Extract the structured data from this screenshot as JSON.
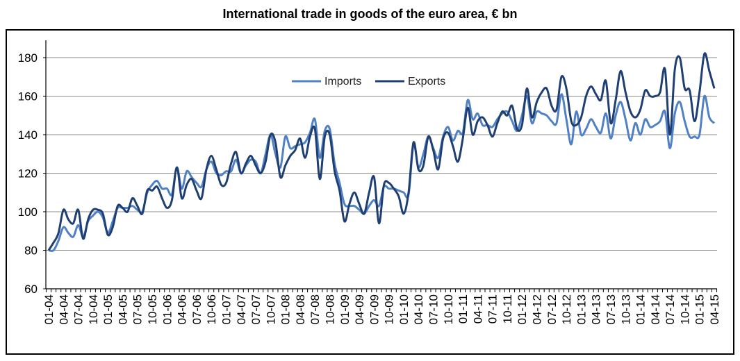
{
  "chart_data": {
    "type": "line",
    "title": "International trade in goods of the euro area, € bn",
    "xlabel": "",
    "ylabel": "",
    "ylim": [
      60,
      190
    ],
    "yticks": [
      60,
      80,
      100,
      120,
      140,
      160,
      180
    ],
    "grid": true,
    "legend_position": "top-center",
    "x_start": "01-04",
    "x_end": "04-15",
    "x_frequency": "monthly",
    "xtick_labels": [
      "01-04",
      "04-04",
      "07-04",
      "10-04",
      "01-05",
      "04-05",
      "07-05",
      "10-05",
      "01-06",
      "04-06",
      "07-06",
      "10-06",
      "01-07",
      "04-07",
      "07-07",
      "10-07",
      "01-08",
      "04-08",
      "07-08",
      "10-08",
      "01-09",
      "04-09",
      "07-09",
      "10-09",
      "01-10",
      "04-10",
      "07-10",
      "10-10",
      "01-11",
      "04-11",
      "07-11",
      "10-11",
      "01-12",
      "04-12",
      "07-12",
      "10-12",
      "01-13",
      "04-13",
      "07-13",
      "10-13",
      "01-14",
      "04-14",
      "07-14",
      "10-14",
      "01-15",
      "04-15"
    ],
    "series": [
      {
        "name": "Imports",
        "color": "#4f81c4",
        "values": [
          80,
          80,
          85,
          92,
          89,
          87,
          93,
          87,
          95,
          98,
          100,
          97,
          89,
          95,
          102,
          102,
          102,
          103,
          101,
          100,
          110,
          114,
          116,
          112,
          112,
          109,
          123,
          112,
          121,
          118,
          115,
          113,
          122,
          126,
          120,
          119,
          121,
          121,
          127,
          120,
          124,
          127,
          126,
          120,
          130,
          140,
          130,
          123,
          139,
          133,
          134,
          135,
          136,
          141,
          148,
          128,
          142,
          143,
          125,
          115,
          104,
          103,
          103,
          101,
          99,
          103,
          106,
          103,
          113,
          112,
          112,
          111,
          110,
          109,
          135,
          123,
          130,
          139,
          133,
          128,
          139,
          144,
          137,
          142,
          141,
          158,
          148,
          151,
          145,
          145,
          144,
          148,
          151,
          152,
          147,
          142,
          150,
          160,
          146,
          152,
          151,
          150,
          147,
          146,
          161,
          148,
          135,
          152,
          140,
          143,
          148,
          144,
          141,
          151,
          138,
          150,
          157,
          148,
          137,
          146,
          140,
          148,
          144,
          145,
          147,
          152,
          133,
          151,
          157,
          147,
          139,
          139,
          140,
          160,
          149,
          146
        ]
      },
      {
        "name": "Exports",
        "color": "#1f3e72",
        "values": [
          80,
          84,
          89,
          101,
          96,
          94,
          101,
          86,
          96,
          101,
          101,
          99,
          88,
          92,
          103,
          102,
          100,
          107,
          103,
          99,
          111,
          111,
          113,
          107,
          102,
          106,
          123,
          107,
          114,
          117,
          111,
          107,
          122,
          129,
          122,
          114,
          115,
          125,
          131,
          120,
          125,
          129,
          124,
          120,
          126,
          140,
          136,
          118,
          124,
          129,
          132,
          138,
          128,
          139,
          143,
          117,
          139,
          140,
          121,
          111,
          95,
          104,
          110,
          104,
          99,
          110,
          118,
          94,
          114,
          115,
          112,
          108,
          99,
          110,
          136,
          122,
          124,
          139,
          132,
          122,
          138,
          141,
          134,
          126,
          138,
          154,
          140,
          147,
          149,
          145,
          139,
          146,
          152,
          150,
          155,
          143,
          145,
          164,
          149,
          157,
          162,
          164,
          155,
          153,
          170,
          164,
          147,
          145,
          149,
          160,
          165,
          161,
          158,
          168,
          146,
          158,
          173,
          162,
          152,
          149,
          153,
          163,
          160,
          160,
          162,
          174,
          140,
          174,
          180,
          164,
          163,
          147,
          162,
          182,
          173,
          164
        ]
      }
    ]
  }
}
